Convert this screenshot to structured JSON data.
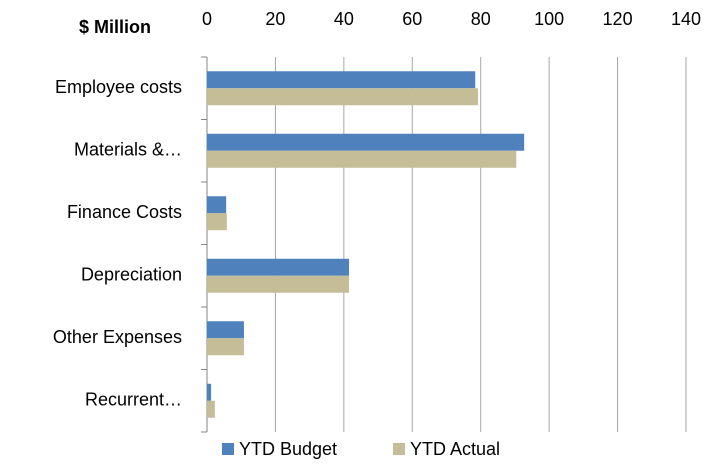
{
  "chart_data": {
    "type": "hbar",
    "unit_label": "$ Million",
    "categories": [
      "Employee costs",
      "Materials &…",
      "Finance Costs",
      "Depreciation",
      "Other Expenses",
      "Recurrent…"
    ],
    "series": [
      {
        "name": "YTD Budget",
        "color": "#4f81bd",
        "values": [
          78.4,
          92.7,
          5.6,
          41.5,
          10.8,
          1.2
        ]
      },
      {
        "name": "YTD Actual",
        "color": "#c4bd97",
        "values": [
          79.2,
          90.4,
          5.8,
          41.5,
          10.8,
          2.3
        ]
      }
    ],
    "xlim": [
      0,
      140
    ],
    "xticks": [
      0,
      20,
      40,
      60,
      80,
      100,
      120,
      140
    ],
    "grid": true
  }
}
